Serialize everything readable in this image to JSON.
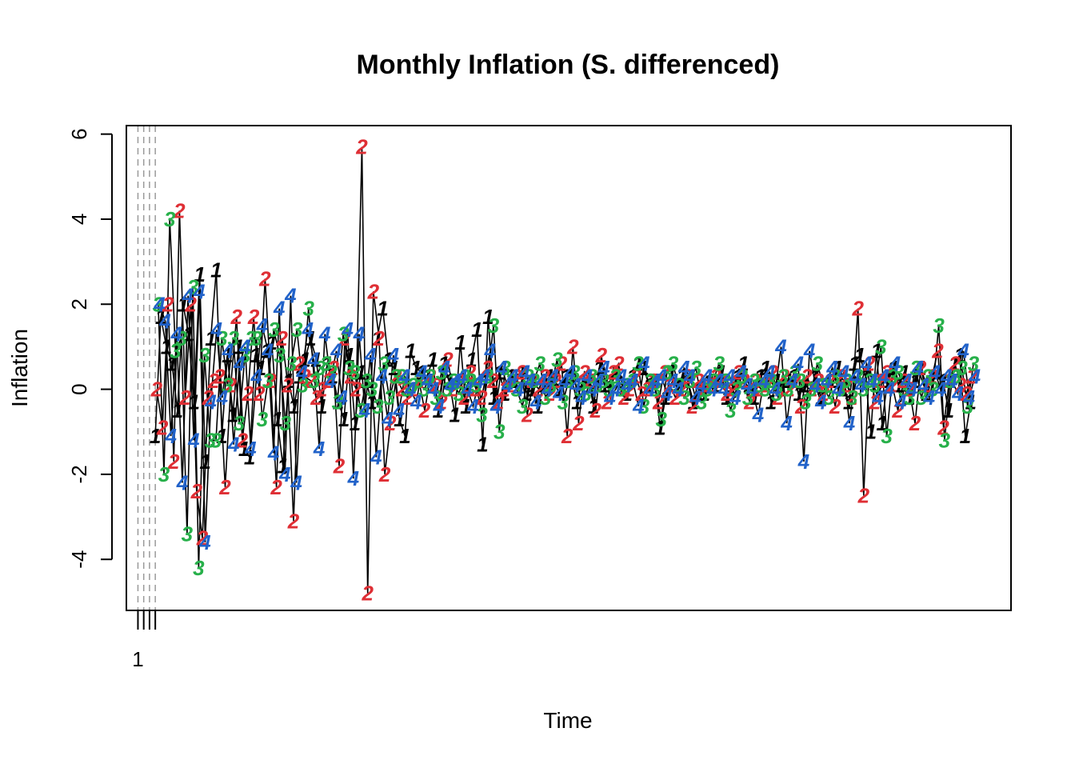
{
  "chart_data": {
    "type": "line",
    "title": "Monthly Inflation (S. differenced)",
    "xlabel": "Time",
    "ylabel": "Inflation",
    "ylim": [
      -5.2,
      6.2
    ],
    "yticks": [
      -4,
      -2,
      0,
      2,
      4,
      6
    ],
    "ytick_labels": [
      "-4",
      "-2",
      "0",
      "2",
      "4",
      "6"
    ],
    "x_ticks_shown": [
      1,
      2,
      3,
      4
    ],
    "x_tick_labels": [
      "1",
      "",
      "",
      ""
    ],
    "xlim": [
      -1.0,
      152.0
    ],
    "grid": false,
    "plot_symbols": true,
    "series": [
      {
        "symbol": "1",
        "color": "#000000",
        "values": [
          -1.1,
          1.7,
          1.0,
          0.6,
          -0.5,
          2.0,
          1.3,
          -0.3,
          2.7,
          -1.7,
          1.2,
          2.8,
          -1.1,
          0.8,
          -0.6,
          1.0,
          -1.4,
          -1.6,
          0.8,
          0.5,
          0.9,
          1.1,
          -0.7,
          -1.8,
          0.2,
          -0.4,
          0.3,
          0.7,
          1.2,
          0.7,
          -0.4,
          0.6,
          0.3,
          -0.3,
          -0.7,
          0.8,
          -0.8,
          0.4,
          0.2,
          -0.3,
          1.2,
          1.9,
          0.7,
          0.5,
          -0.7,
          -1.1,
          0.9,
          0.5,
          0.4,
          0.3,
          0.7,
          -0.5,
          0.6,
          0.2,
          -0.6,
          1.1,
          -0.4,
          0.7,
          1.4,
          -1.3,
          1.7,
          -0.2,
          0.4,
          -0.1,
          0.3,
          0.2,
          0.4,
          -0.1,
          0.0,
          -0.4,
          0.1,
          0.3,
          0.2,
          0.0,
          0.3,
          0.3,
          -0.3,
          0.2,
          0.3,
          -0.4,
          0.5,
          0.1,
          0.2,
          0.4,
          0.0,
          -0.1,
          0.3,
          0.6,
          0.5,
          0.1,
          0.2,
          -0.9,
          -0.2,
          0.4,
          0.1,
          0.3,
          0.2,
          -0.3,
          0.0,
          -0.1,
          0.2,
          0.1,
          0.4,
          -0.2,
          0.0,
          0.3,
          0.6,
          0.1,
          -0.2,
          0.3,
          0.5,
          -0.3,
          0.2,
          0.0,
          0.2,
          0.3,
          -0.1,
          0.1,
          0.0,
          0.3,
          -0.2,
          0.1,
          0.2,
          0.5,
          0.0,
          -0.3,
          0.6,
          0.8,
          0.3,
          -1.0,
          0.9,
          -0.8,
          0.2,
          0.5,
          0.1,
          0.4,
          -0.2,
          0.2,
          0.5,
          -0.1,
          0.3,
          0.4,
          0.2,
          -0.5,
          0.6,
          0.8,
          -1.1,
          -0.3
        ]
      },
      {
        "symbol": "2",
        "color": "#df2f35",
        "values": [
          0.0,
          -0.9,
          2.0,
          -1.7,
          4.2,
          -0.2,
          2.0,
          -2.4,
          -3.5,
          -0.2,
          0.2,
          0.3,
          -2.3,
          0.1,
          1.7,
          -1.2,
          -0.1,
          1.7,
          -0.1,
          2.6,
          0.2,
          -2.3,
          1.2,
          0.1,
          -3.1,
          0.6,
          0.3,
          0.2,
          -0.2,
          0.0,
          0.2,
          0.5,
          -1.8,
          1.2,
          0.3,
          0.0,
          5.7,
          -4.8,
          2.3,
          1.2,
          -2.0,
          -0.8,
          0.3,
          0.0,
          -0.2,
          0.0,
          0.2,
          -0.5,
          0.3,
          0.1,
          -0.3,
          0.7,
          0.0,
          0.2,
          -0.2,
          0.4,
          0.0,
          -0.2,
          0.5,
          0.2,
          -0.3,
          0.0,
          0.1,
          0.3,
          0.4,
          -0.6,
          0.2,
          0.0,
          0.3,
          -0.1,
          0.2,
          0.6,
          -1.1,
          1.0,
          -0.8,
          0.4,
          0.2,
          -0.5,
          0.8,
          -0.3,
          0.4,
          0.6,
          -0.2,
          0.0,
          0.3,
          -0.1,
          0.0,
          0.2,
          -0.3,
          0.4,
          0.1,
          -0.2,
          0.0,
          0.3,
          -0.4,
          0.2,
          0.0,
          0.1,
          0.3,
          0.2,
          -0.1,
          0.0,
          0.4,
          0.2,
          -0.3,
          0.2,
          0.0,
          0.1,
          0.4,
          -0.2,
          0.3,
          0.0,
          0.2,
          -0.4,
          0.3,
          0.0,
          0.2,
          -0.1,
          0.2,
          -0.4,
          0.3,
          0.1,
          -0.2,
          1.9,
          -2.5,
          0.6,
          -0.3,
          0.2,
          0.4,
          0.1,
          -0.5,
          0.2,
          0.0,
          -0.8,
          0.5,
          0.1,
          0.3,
          0.9,
          -0.9,
          0.2,
          0.6,
          0.1,
          -0.1,
          0.3
        ]
      },
      {
        "symbol": "3",
        "color": "#27b04a",
        "values": [
          2.0,
          -2.0,
          4.0,
          0.9,
          1.2,
          -3.4,
          2.4,
          -4.2,
          0.8,
          -1.2,
          -1.2,
          1.2,
          0.1,
          1.2,
          -0.8,
          0.8,
          1.2,
          1.2,
          -0.7,
          0.2,
          1.4,
          0.8,
          -0.8,
          0.6,
          1.4,
          0.1,
          1.9,
          0.2,
          0.5,
          0.6,
          0.4,
          -0.3,
          1.3,
          0.5,
          0.4,
          -0.5,
          0.2,
          0.0,
          -0.4,
          0.6,
          -0.2,
          0.3,
          0.3,
          0.0,
          0.1,
          0.2,
          0.0,
          0.3,
          -0.2,
          0.4,
          0.0,
          0.2,
          -0.1,
          0.3,
          0.2,
          0.1,
          -0.6,
          0.3,
          1.5,
          -1.0,
          0.5,
          0.2,
          0.0,
          -0.4,
          0.3,
          0.2,
          0.6,
          -0.2,
          0.1,
          0.7,
          -0.3,
          0.2,
          0.4,
          0.0,
          -0.1,
          0.3,
          0.1,
          0.2,
          0.0,
          0.3,
          0.0,
          0.1,
          0.2,
          0.6,
          -0.4,
          0.2,
          0.0,
          -0.7,
          0.4,
          0.6,
          0.1,
          -0.2,
          0.2,
          0.5,
          -0.3,
          0.0,
          0.2,
          0.6,
          0.2,
          -0.5,
          0.0,
          0.3,
          -0.2,
          0.2,
          0.1,
          0.0,
          0.2,
          -0.1,
          0.3,
          0.0,
          0.4,
          0.2,
          -0.3,
          0.0,
          0.6,
          0.1,
          -0.2,
          0.3,
          0.0,
          0.2,
          -0.2,
          0.3,
          0.0,
          0.2,
          0.1,
          1.0,
          -1.1,
          0.3,
          0.4,
          0.0,
          -0.2,
          0.5,
          -0.2,
          0.3,
          0.0,
          1.5,
          -1.2,
          0.2,
          0.3,
          0.5,
          -0.4,
          0.6
        ]
      },
      {
        "symbol": "4",
        "color": "#2162c9",
        "values": [
          2.0,
          1.6,
          -1.1,
          1.3,
          -2.2,
          2.2,
          -1.2,
          2.3,
          -3.6,
          -0.3,
          1.4,
          -0.2,
          0.9,
          -1.3,
          0.6,
          1.0,
          -1.4,
          0.3,
          1.5,
          0.9,
          -1.5,
          1.9,
          -2.0,
          2.2,
          -2.2,
          0.4,
          1.4,
          0.7,
          -1.4,
          1.3,
          0.2,
          0.9,
          -0.2,
          1.4,
          -2.1,
          1.3,
          -0.5,
          0.8,
          -1.6,
          0.3,
          -0.7,
          0.8,
          -0.5,
          0.3,
          0.0,
          -0.3,
          0.4,
          0.2,
          0.0,
          -0.4,
          0.5,
          0.1,
          0.2,
          0.3,
          0.0,
          -0.4,
          0.2,
          0.3,
          0.9,
          -0.4,
          0.5,
          0.1,
          0.3,
          0.0,
          0.4,
          0.2,
          -0.3,
          0.2,
          0.0,
          0.3,
          -0.1,
          0.2,
          0.4,
          0.1,
          -0.2,
          0.3,
          0.0,
          0.2,
          0.5,
          -0.2,
          0.0,
          0.3,
          0.1,
          0.2,
          -0.4,
          0.6,
          0.0,
          0.2,
          0.3,
          -0.1,
          0.2,
          0.0,
          0.5,
          0.3,
          -0.2,
          0.1,
          0.3,
          0.0,
          0.2,
          0.0,
          0.3,
          -0.2,
          0.4,
          0.1,
          0.0,
          -0.6,
          0.2,
          0.4,
          0.0,
          1.0,
          -0.8,
          0.2,
          0.6,
          -1.7,
          0.9,
          0.1,
          -0.3,
          0.2,
          0.5,
          0.0,
          0.4,
          -0.8,
          0.3,
          0.1,
          0.6,
          0.2,
          -0.2,
          0.3,
          0.0,
          0.6,
          -0.3,
          0.2,
          0.0,
          0.5,
          0.1,
          -0.2,
          0.4,
          0.0,
          0.3,
          0.2,
          -0.1,
          0.9,
          -0.2,
          0.3
        ]
      }
    ]
  }
}
